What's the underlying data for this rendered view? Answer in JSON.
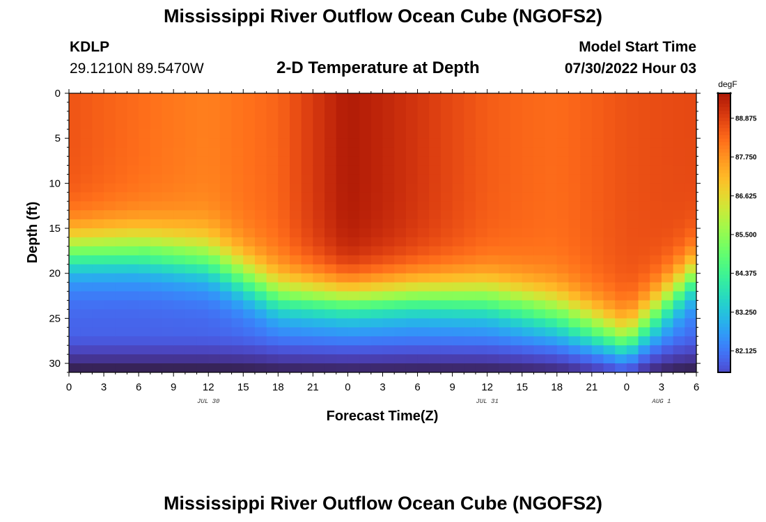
{
  "header": {
    "title": "Mississippi River Outflow Ocean Cube (NGOFS2)",
    "station_id": "KDLP",
    "coordinates": "29.1210N  89.5470W",
    "subtitle": "2-D Temperature at Depth",
    "model_start_label": "Model Start Time",
    "model_start_value": "07/30/2022 Hour 03"
  },
  "footer": {
    "title": "Mississippi River Outflow Ocean Cube (NGOFS2)"
  },
  "chart_data": {
    "type": "heatmap",
    "variable": "Temperature",
    "xlabel": "Forecast Time(Z)",
    "ylabel": "Depth (ft)",
    "x_range_hours": [
      0,
      54
    ],
    "x_tick_step_hours": 3,
    "x_tick_labels": [
      "0",
      "3",
      "6",
      "9",
      "12",
      "15",
      "18",
      "21",
      "0",
      "3",
      "6",
      "9",
      "12",
      "15",
      "18",
      "21",
      "0",
      "3",
      "6"
    ],
    "date_labels": [
      {
        "text": "JUL 30",
        "hour": 12
      },
      {
        "text": "JUL 31",
        "hour": 36
      },
      {
        "text": "AUG 1",
        "hour": 51
      }
    ],
    "y_range_ft": [
      0,
      31
    ],
    "y_inverted": true,
    "y_ticks": [
      0,
      5,
      10,
      15,
      20,
      25,
      30
    ],
    "colorbar": {
      "unit": "degF",
      "min": 81.5,
      "max": 89.6,
      "ticks": [
        "88.875",
        "87.750",
        "86.625",
        "85.500",
        "84.375",
        "83.250",
        "82.125"
      ],
      "colormap": "turbo"
    },
    "series": [
      {
        "name": "surface_temperature_degF",
        "hours": [
          0,
          6,
          12,
          18,
          24,
          30,
          36,
          42,
          48,
          54
        ],
        "values": [
          88.6,
          88.4,
          88.1,
          88.3,
          89.4,
          89.0,
          88.6,
          88.4,
          88.6,
          88.6
        ]
      },
      {
        "name": "thermocline_depth_ft",
        "hours": [
          0,
          6,
          12,
          18,
          24,
          30,
          36,
          42,
          48,
          54
        ],
        "values": [
          17.5,
          17.5,
          18.5,
          22.5,
          22.8,
          22.5,
          22.8,
          24.5,
          27.5,
          20.0
        ]
      }
    ]
  }
}
